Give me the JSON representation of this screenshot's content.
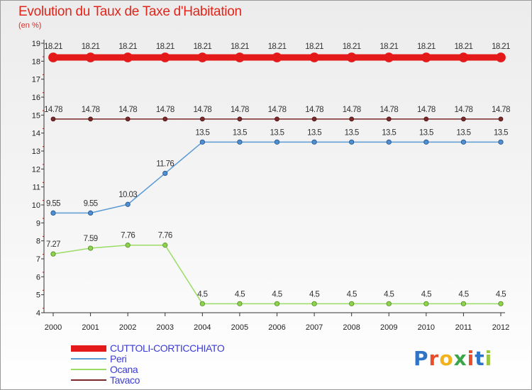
{
  "chart_data": {
    "type": "line",
    "title": "Evolution du Taux de Taxe d'Habitation",
    "subtitle": "(en %)",
    "x": [
      "2000",
      "2001",
      "2002",
      "2003",
      "2004",
      "2005",
      "2006",
      "2007",
      "2008",
      "2009",
      "2010",
      "2011",
      "2012"
    ],
    "ylim": [
      4,
      19
    ],
    "yticks": [
      4,
      5,
      6,
      7,
      8,
      9,
      10,
      11,
      12,
      13,
      14,
      15,
      16,
      17,
      18,
      19
    ],
    "grid": false,
    "legend_position": "bottom-left",
    "series": [
      {
        "name": "CUTTOLI-CORTICCHIATO",
        "color": "#e41a1a",
        "values": [
          18.21,
          18.21,
          18.21,
          18.21,
          18.21,
          18.21,
          18.21,
          18.21,
          18.21,
          18.21,
          18.21,
          18.21,
          18.21
        ],
        "labels": [
          "18.21",
          "18.21",
          "18.21",
          "18.21",
          "18.21",
          "18.21",
          "18.21",
          "18.21",
          "18.21",
          "18.21",
          "18.21",
          "18.21",
          "18.21"
        ]
      },
      {
        "name": "Peri",
        "color": "#5b9bd5",
        "values": [
          9.55,
          9.55,
          10.03,
          11.76,
          13.5,
          13.5,
          13.5,
          13.5,
          13.5,
          13.5,
          13.5,
          13.5,
          13.5
        ],
        "labels": [
          "9.55",
          "9.55",
          "10.03",
          "11.76",
          "13.5",
          "13.5",
          "13.5",
          "13.5",
          "13.5",
          "13.5",
          "13.5",
          "13.5",
          "13.5"
        ]
      },
      {
        "name": "Ocana",
        "color": "#99dd66",
        "values": [
          7.27,
          7.59,
          7.76,
          7.76,
          4.5,
          4.5,
          4.5,
          4.5,
          4.5,
          4.5,
          4.5,
          4.5,
          4.5
        ],
        "labels": [
          "7.27",
          "7.59",
          "7.76",
          "7.76",
          "4.5",
          "4.5",
          "4.5",
          "4.5",
          "4.5",
          "4.5",
          "4.5",
          "4.5",
          "4.5"
        ]
      },
      {
        "name": "Tavaco",
        "color": "#7a2a2a",
        "values": [
          14.78,
          14.78,
          14.78,
          14.78,
          14.78,
          14.78,
          14.78,
          14.78,
          14.78,
          14.78,
          14.78,
          14.78,
          14.78
        ],
        "labels": [
          "14.78",
          "14.78",
          "14.78",
          "14.78",
          "14.78",
          "14.78",
          "14.78",
          "14.78",
          "14.78",
          "14.78",
          "14.78",
          "14.78",
          "14.78"
        ]
      }
    ]
  },
  "logo": {
    "letters": [
      "P",
      "r",
      "o",
      "x",
      "i",
      "t",
      "i"
    ],
    "colors": [
      "#2e75c8",
      "#e84e2a",
      "#f2b21b",
      "#3aa64a",
      "#e84e2a",
      "#2e75c8",
      "#9bc641"
    ]
  }
}
